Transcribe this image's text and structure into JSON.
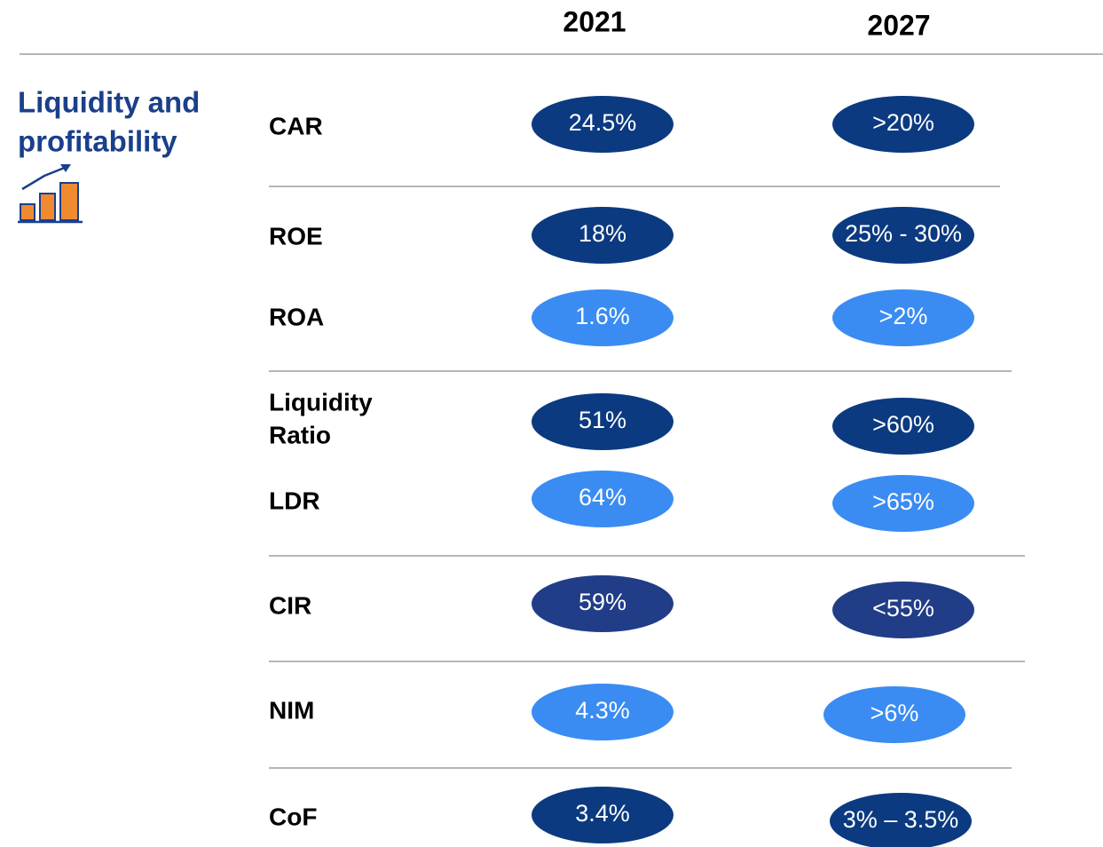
{
  "header": {
    "columns": [
      "2021",
      "2027"
    ]
  },
  "section": {
    "title_lines": [
      "Liquidity and",
      "profitability"
    ]
  },
  "rows": [
    {
      "label_lines": [
        "CAR"
      ],
      "values": [
        "24.5%",
        ">20%"
      ],
      "color": "#0b3a80"
    },
    {
      "label_lines": [
        "ROE"
      ],
      "values": [
        "18%",
        "25% - 30%"
      ],
      "color": "#0b3a80"
    },
    {
      "label_lines": [
        "ROA"
      ],
      "values": [
        "1.6%",
        ">2%"
      ],
      "color": "#3a8cf2"
    },
    {
      "label_lines": [
        "Liquidity",
        "Ratio"
      ],
      "values": [
        "51%",
        ">60%"
      ],
      "color": "#0b3a80"
    },
    {
      "label_lines": [
        "LDR"
      ],
      "values": [
        "64%",
        ">65%"
      ],
      "color": "#3a8cf2"
    },
    {
      "label_lines": [
        "CIR"
      ],
      "values": [
        "59%",
        "<55%"
      ],
      "color": "#213d88"
    },
    {
      "label_lines": [
        "NIM"
      ],
      "values": [
        "4.3%",
        ">6%"
      ],
      "color": "#3a8cf2"
    },
    {
      "label_lines": [
        "CoF"
      ],
      "values": [
        "3.4%",
        "3% – 3.5%"
      ],
      "color": "#0b3a80"
    }
  ]
}
